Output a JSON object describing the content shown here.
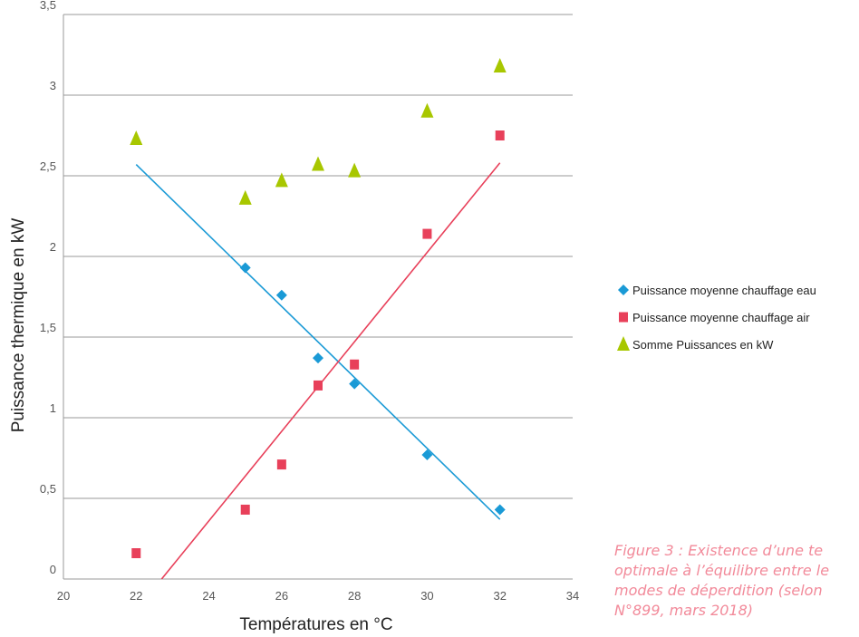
{
  "chart_data": {
    "type": "scatter",
    "xlabel": "Températures en °C",
    "ylabel": "Puissance thermique en kW",
    "xlim": [
      20,
      34
    ],
    "ylim": [
      0,
      3.5
    ],
    "x_ticks": [
      "20",
      "22",
      "24",
      "26",
      "28",
      "30",
      "32",
      "34"
    ],
    "y_ticks": [
      "0",
      "0,5",
      "1",
      "1,5",
      "2",
      "2,5",
      "3",
      "3,5"
    ],
    "grid": "horizontal",
    "legend_position": "right",
    "series": [
      {
        "name": "Puissance moyenne chauffage eau",
        "marker": "diamond",
        "color": "#1a9ad6",
        "points": [
          [
            25,
            1.93
          ],
          [
            26,
            1.76
          ],
          [
            27,
            1.37
          ],
          [
            28,
            1.21
          ],
          [
            30,
            0.77
          ],
          [
            32,
            0.43
          ]
        ],
        "trendline": [
          [
            22,
            2.57
          ],
          [
            32,
            0.37
          ]
        ]
      },
      {
        "name": "Puissance moyenne chauffage air",
        "marker": "square",
        "color": "#e8405a",
        "points": [
          [
            22,
            0.16
          ],
          [
            25,
            0.43
          ],
          [
            26,
            0.71
          ],
          [
            27,
            1.2
          ],
          [
            28,
            1.33
          ],
          [
            30,
            2.14
          ],
          [
            32,
            2.75
          ]
        ],
        "trendline": [
          [
            22.7,
            0
          ],
          [
            32,
            2.58
          ]
        ]
      },
      {
        "name": "Somme Puissances en kW",
        "marker": "triangle",
        "color": "#a8c700",
        "points": [
          [
            22,
            2.73
          ],
          [
            25,
            2.36
          ],
          [
            26,
            2.47
          ],
          [
            27,
            2.57
          ],
          [
            28,
            2.53
          ],
          [
            30,
            2.9
          ],
          [
            32,
            3.18
          ]
        ]
      }
    ]
  },
  "caption": {
    "lines": [
      "Figure 3 : Existence d’une te",
      "optimale à l’équilibre entre le",
      "modes de déperdition (selon",
      "N°899, mars 2018)"
    ]
  }
}
